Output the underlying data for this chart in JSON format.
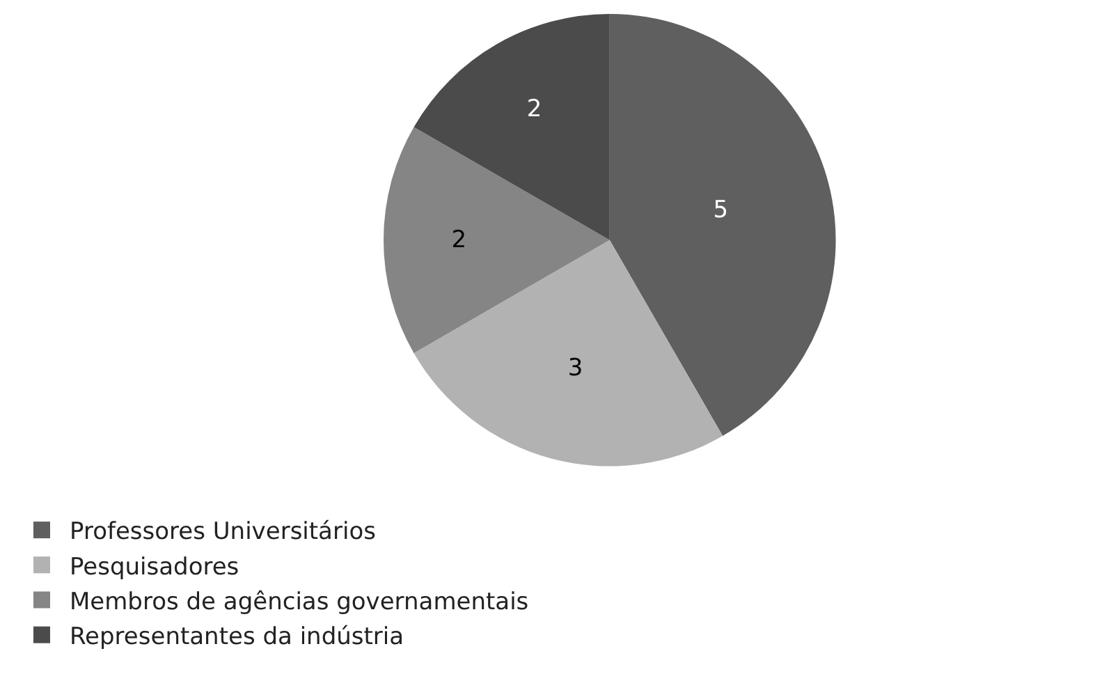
{
  "chart_data": {
    "type": "pie",
    "categories": [
      "Professores Universitários",
      "Pesquisadores",
      "Membros de agências governamentais",
      "Representantes da indústria"
    ],
    "values": [
      5,
      3,
      2,
      2
    ],
    "colors": [
      "#5f5f5f",
      "#b2b2b2",
      "#858585",
      "#4b4b4b"
    ],
    "data_labels": true,
    "legend": "bottom"
  }
}
